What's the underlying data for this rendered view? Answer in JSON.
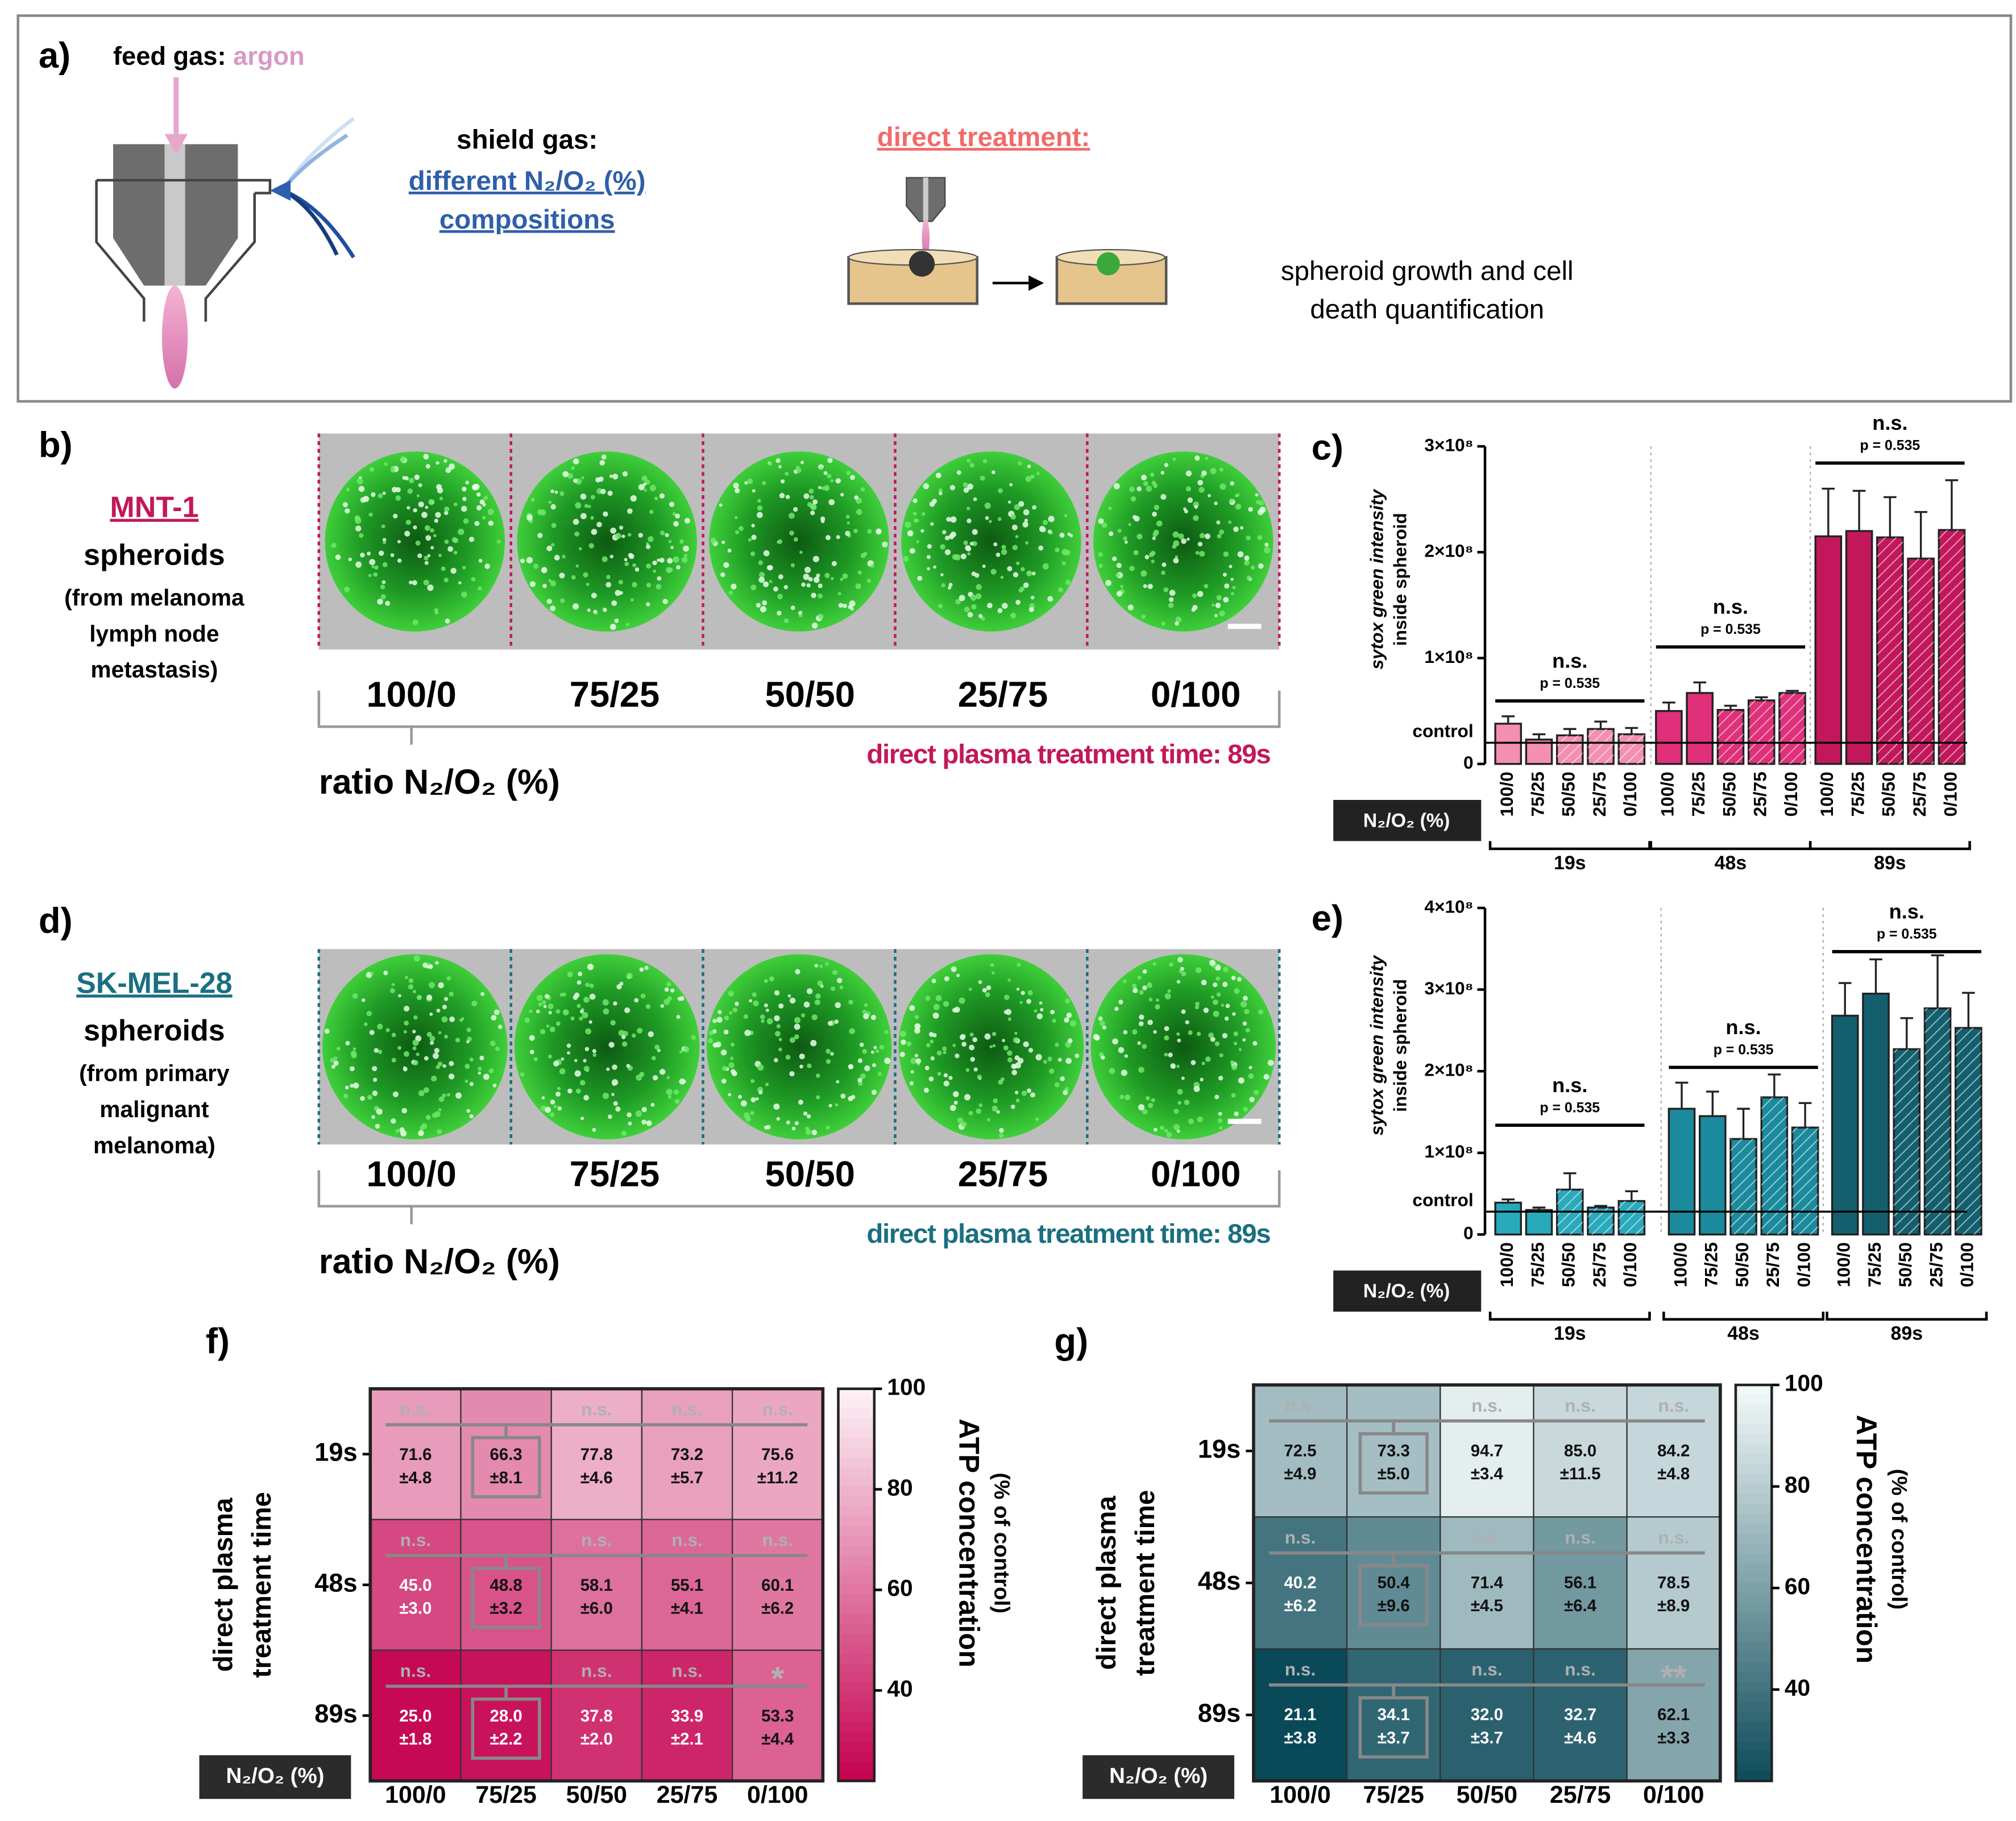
{
  "panel_a": {
    "label": "a)",
    "feed_gas": "feed gas:",
    "argon": "argon",
    "shield_gas": "shield gas:",
    "shield_line1": "different N₂/O₂ (%)",
    "shield_line2": "compositions",
    "direct": "direct treatment:",
    "outcome": [
      "spheroid growth and cell",
      "death quantification"
    ]
  },
  "panel_b": {
    "label": "b)",
    "cell_line": "MNT-1",
    "lines": [
      "spheroids",
      "(from melanoma",
      "lymph node",
      "metastasis)"
    ],
    "ratios": [
      "100/0",
      "75/25",
      "50/50",
      "25/75",
      "0/100"
    ],
    "axis": "ratio N₂/O₂ (%)",
    "time": "direct plasma treatment time: 89s"
  },
  "panel_d": {
    "label": "d)",
    "cell_line": "SK-MEL-28",
    "lines": [
      "spheroids",
      "(from primary",
      "malignant",
      "melanoma)"
    ],
    "ratios": [
      "100/0",
      "75/25",
      "50/50",
      "25/75",
      "0/100"
    ],
    "axis": "ratio N₂/O₂ (%)",
    "time": "direct plasma treatment time: 89s"
  },
  "chart_data": [
    {
      "type": "bar",
      "label": "c)",
      "ylabel": [
        "sytox green intensity",
        "inside spheroid"
      ],
      "xlabel": "N₂/O₂ (%)",
      "categories": [
        "100/0",
        "75/25",
        "50/50",
        "25/75",
        "0/100"
      ],
      "ylim": [
        0,
        300000000
      ],
      "yticks": [
        0,
        {
          "value": 100000000,
          "label": "1×10⁸"
        },
        {
          "value": 200000000,
          "label": "2×10⁸"
        },
        {
          "value": 300000000,
          "label": "3×10⁸"
        }
      ],
      "reference_line": {
        "label": "control",
        "value": 20000000
      },
      "series": [
        {
          "name": "19s",
          "color": "#f48fb1",
          "values": [
            38000000,
            23000000,
            27000000,
            33000000,
            28000000
          ],
          "errors": [
            7000000,
            5000000,
            6000000,
            7000000,
            6000000
          ],
          "annotation": "n.s.",
          "p_label": "p = 0.535"
        },
        {
          "name": "48s",
          "color": "#e0307a",
          "values": [
            50000000,
            67000000,
            51000000,
            60000000,
            67000000
          ],
          "errors": [
            8000000,
            10000000,
            4000000,
            3000000,
            2000000
          ],
          "annotation": "n.s.",
          "p_label": "p = 0.535"
        },
        {
          "name": "89s",
          "color": "#c2185b",
          "values": [
            215000000,
            220000000,
            214000000,
            194000000,
            221000000
          ],
          "errors": [
            45000000,
            38000000,
            38000000,
            44000000,
            47000000
          ],
          "annotation": "n.s.",
          "p_label": "p = 0.535"
        }
      ]
    },
    {
      "type": "bar",
      "label": "e)",
      "ylabel": [
        "sytox green intensity",
        "inside spheroid"
      ],
      "xlabel": "N₂/O₂ (%)",
      "categories": [
        "100/0",
        "75/25",
        "50/50",
        "25/75",
        "0/100"
      ],
      "ylim": [
        0,
        400000000
      ],
      "yticks": [
        0,
        {
          "value": 100000000,
          "label": "1×10⁸"
        },
        {
          "value": 200000000,
          "label": "2×10⁸"
        },
        {
          "value": 300000000,
          "label": "3×10⁸"
        },
        {
          "value": 400000000,
          "label": "4×10⁸"
        }
      ],
      "reference_line": {
        "label": "control",
        "value": 28000000
      },
      "series": [
        {
          "name": "19s",
          "color": "#29a9bc",
          "values": [
            39000000,
            30000000,
            55000000,
            33000000,
            41000000
          ],
          "errors": [
            4000000,
            3000000,
            20000000,
            2000000,
            12000000
          ],
          "annotation": "n.s.",
          "p_label": "p = 0.535"
        },
        {
          "name": "48s",
          "color": "#1b8a9c",
          "values": [
            154000000,
            145000000,
            117000000,
            168000000,
            131000000
          ],
          "errors": [
            32000000,
            30000000,
            37000000,
            28000000,
            30000000
          ],
          "annotation": "n.s.",
          "p_label": "p = 0.535"
        },
        {
          "name": "89s",
          "color": "#145f6e",
          "values": [
            268000000,
            295000000,
            227000000,
            277000000,
            253000000
          ],
          "errors": [
            40000000,
            42000000,
            38000000,
            65000000,
            43000000
          ],
          "annotation": "n.s.",
          "p_label": "p = 0.535"
        }
      ]
    },
    {
      "type": "heatmap",
      "label": "f)",
      "ylabel": [
        "direct plasma",
        "treatment time"
      ],
      "xlabel": "N₂/O₂ (%)",
      "ctitle": [
        "ATP concentration",
        "(% of control)"
      ],
      "x": [
        "100/0",
        "75/25",
        "50/50",
        "25/75",
        "0/100"
      ],
      "y": [
        "19s",
        "48s",
        "89s"
      ],
      "values": [
        [
          71.6,
          66.3,
          77.8,
          73.2,
          75.6
        ],
        [
          45.0,
          48.8,
          58.1,
          55.1,
          60.1
        ],
        [
          25.0,
          28.0,
          37.8,
          33.9,
          53.3
        ]
      ],
      "value_labels": [
        [
          "71.6",
          "66.3",
          "77.8",
          "73.2",
          "75.6"
        ],
        [
          "45.0",
          "48.8",
          "58.1",
          "55.1",
          "60.1"
        ],
        [
          "25.0",
          "28.0",
          "37.8",
          "33.9",
          "53.3"
        ]
      ],
      "errors": [
        [
          4.8,
          8.1,
          4.6,
          5.7,
          11.2
        ],
        [
          3.0,
          3.2,
          6.0,
          4.1,
          6.2
        ],
        [
          1.8,
          2.2,
          2.0,
          2.1,
          4.4
        ]
      ],
      "error_labels": [
        [
          "±4.8",
          "±8.1",
          "±4.6",
          "±5.7",
          "±11.2"
        ],
        [
          "±3.0",
          "±3.2",
          "±6.0",
          "±4.1",
          "±6.2"
        ],
        [
          "±1.8",
          "±2.2",
          "±2.0",
          "±2.1",
          "±4.4"
        ]
      ],
      "annotations": [
        [
          "n.s.",
          null,
          "n.s.",
          "n.s.",
          "n.s."
        ],
        [
          "n.s.",
          null,
          "n.s.",
          "n.s.",
          "n.s."
        ],
        [
          "n.s.",
          null,
          "n.s.",
          "n.s.",
          "*"
        ]
      ],
      "clim": [
        22,
        100
      ],
      "cticks": [
        40,
        60,
        80,
        100
      ],
      "colormap": [
        "#c4004f",
        "#fdf3f7"
      ]
    },
    {
      "type": "heatmap",
      "label": "g)",
      "ylabel": [
        "direct plasma",
        "treatment time"
      ],
      "xlabel": "N₂/O₂ (%)",
      "ctitle": [
        "ATP concentration",
        "(% of control)"
      ],
      "x": [
        "100/0",
        "75/25",
        "50/50",
        "25/75",
        "0/100"
      ],
      "y": [
        "19s",
        "48s",
        "89s"
      ],
      "values": [
        [
          72.5,
          73.3,
          94.7,
          85.0,
          84.2
        ],
        [
          40.2,
          50.4,
          71.4,
          56.1,
          78.5
        ],
        [
          21.1,
          34.1,
          32.0,
          32.7,
          62.1
        ]
      ],
      "value_labels": [
        [
          "72.5",
          "73.3",
          "94.7",
          "85.0",
          "84.2"
        ],
        [
          "40.2",
          "50.4",
          "71.4",
          "56.1",
          "78.5"
        ],
        [
          "21.1",
          "34.1",
          "32.0",
          "32.7",
          "62.1"
        ]
      ],
      "errors": [
        [
          4.9,
          5.0,
          3.4,
          11.5,
          4.8
        ],
        [
          6.2,
          9.6,
          4.5,
          6.4,
          8.9
        ],
        [
          3.8,
          3.7,
          3.7,
          4.6,
          3.3
        ]
      ],
      "error_labels": [
        [
          "±4.9",
          "±5.0",
          "±3.4",
          "±11.5",
          "±4.8"
        ],
        [
          "±6.2",
          "±9.6",
          "±4.5",
          "±6.4",
          "±8.9"
        ],
        [
          "±3.8",
          "±3.7",
          "±3.7",
          "±4.6",
          "±3.3"
        ]
      ],
      "annotations": [
        [
          "n.s.",
          null,
          "n.s.",
          "n.s.",
          "n.s."
        ],
        [
          "n.s.",
          null,
          "n.s.",
          "n.s.",
          "n.s."
        ],
        [
          "n.s.",
          null,
          "n.s.",
          "n.s.",
          "**"
        ]
      ],
      "clim": [
        22,
        100
      ],
      "cticks": [
        40,
        60,
        80,
        100
      ],
      "colormap": [
        "#0d4b5a",
        "#f4fafa"
      ]
    }
  ]
}
